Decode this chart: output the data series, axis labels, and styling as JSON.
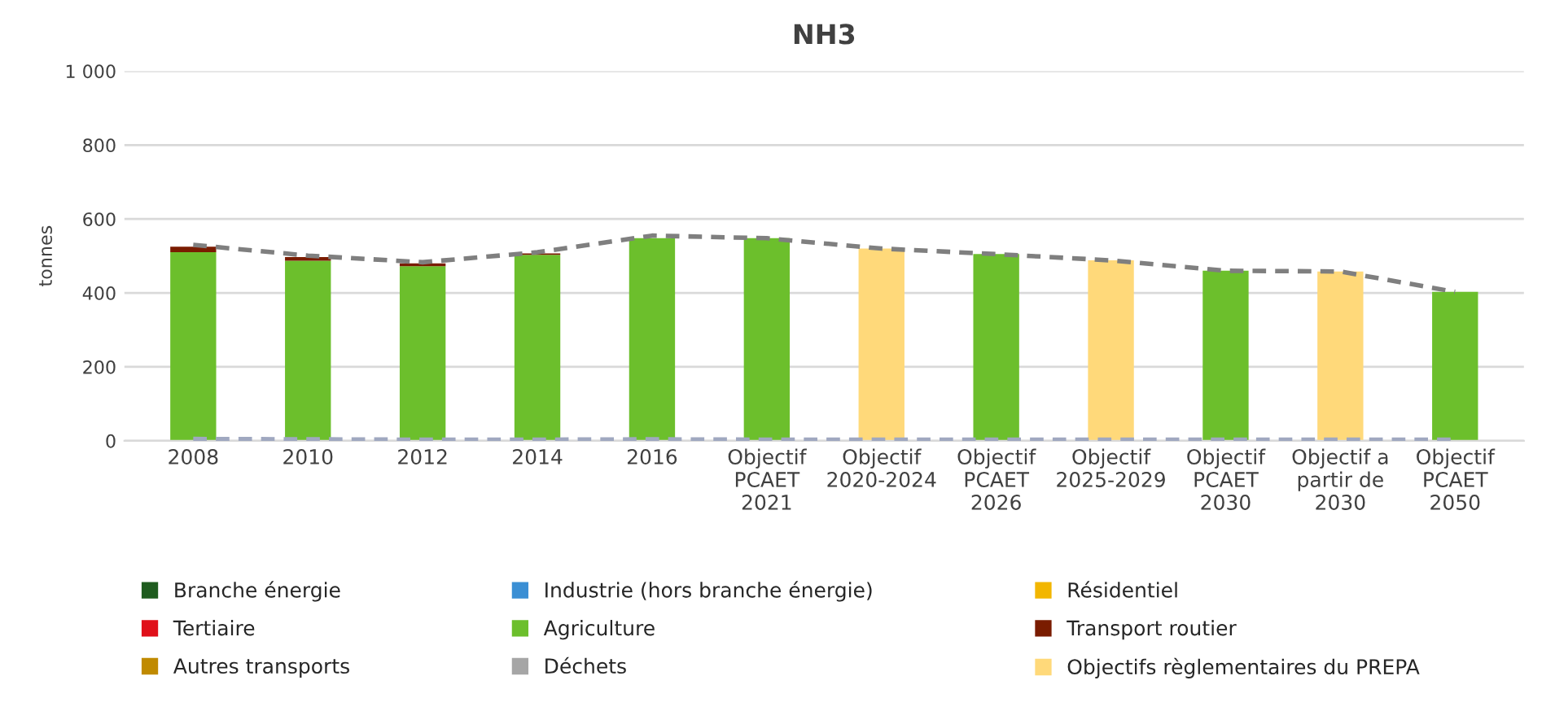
{
  "chart_data": {
    "type": "bar",
    "title": "NH3",
    "ylabel": "tonnes",
    "categories": [
      "2008",
      "2010",
      "2012",
      "2014",
      "2016",
      "Objectif\nPCAET\n2021",
      "Objectif\n2020-2024",
      "Objectif\nPCAET\n2026",
      "Objectif\n2025-2029",
      "Objectif\nPCAET\n2030",
      "Objectif a\npartir de\n2030",
      "Objectif\nPCAET\n2050"
    ],
    "stacked": true,
    "series": [
      {
        "name": "Branche énergie",
        "color": "#1f5c1f",
        "values": [
          null,
          null,
          null,
          null,
          null,
          null,
          null,
          null,
          null,
          null,
          null,
          null
        ]
      },
      {
        "name": "Industrie (hors branche énergie)",
        "color": "#3b8fd4",
        "values": [
          null,
          null,
          null,
          null,
          null,
          null,
          null,
          null,
          null,
          null,
          null,
          null
        ]
      },
      {
        "name": "Résidentiel",
        "color": "#f2b600",
        "values": [
          null,
          null,
          null,
          null,
          null,
          null,
          null,
          null,
          null,
          null,
          null,
          null
        ]
      },
      {
        "name": "Tertiaire",
        "color": "#e0101a",
        "values": [
          null,
          null,
          null,
          null,
          null,
          null,
          null,
          null,
          null,
          null,
          null,
          null
        ]
      },
      {
        "name": "Agriculture",
        "color": "#6cbf2c",
        "values": [
          510,
          487,
          472,
          503,
          548,
          548,
          null,
          505,
          null,
          460,
          null,
          403
        ]
      },
      {
        "name": "Transport routier",
        "color": "#7a1c00",
        "values": [
          15,
          10,
          8,
          4,
          null,
          null,
          null,
          null,
          null,
          null,
          null,
          null
        ]
      },
      {
        "name": "Autres transports",
        "color": "#c08a00",
        "values": [
          null,
          null,
          null,
          null,
          null,
          null,
          null,
          null,
          null,
          null,
          null,
          null
        ]
      },
      {
        "name": "Déchets",
        "color": "#a6a6a6",
        "values": [
          null,
          null,
          null,
          null,
          null,
          null,
          null,
          null,
          null,
          null,
          null,
          null
        ]
      },
      {
        "name": "Objectifs règlementaires du PREPA",
        "color": "#ffd97a",
        "values": [
          null,
          null,
          null,
          null,
          null,
          null,
          520,
          null,
          488,
          null,
          458,
          null
        ]
      },
      {
        "type": "line",
        "color": "#7f7f7f",
        "line_style": "dashed",
        "values": [
          530,
          501,
          483,
          510,
          555,
          548,
          520,
          505,
          488,
          460,
          458,
          403
        ]
      },
      {
        "type": "line",
        "color": "#a0a8c0",
        "line_style": "dashed",
        "values": [
          5,
          4,
          3,
          3,
          4,
          3,
          3,
          3,
          3,
          3,
          3,
          3
        ]
      }
    ],
    "ylim": [
      0,
      1000
    ],
    "yticks": [
      0,
      200,
      400,
      600,
      800,
      {
        "value": 1000,
        "label": "1 000"
      }
    ],
    "grid": "y",
    "legend": "bottom"
  }
}
